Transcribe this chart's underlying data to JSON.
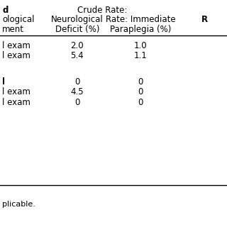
{
  "header_row1": [
    "d",
    "Crude Rate:",
    "",
    ""
  ],
  "header_row2": [
    "ological",
    "Neurological",
    "Rate: Immediate",
    "R"
  ],
  "header_row3": [
    "ment",
    "Deficit (%)",
    "Paraplegia (%)",
    ""
  ],
  "data_rows": [
    [
      "l exam",
      "2.0",
      "1.0",
      ""
    ],
    [
      "l exam",
      "5.4",
      "1.1",
      ""
    ],
    [
      "",
      "",
      "",
      ""
    ],
    [
      "l",
      "0",
      "0",
      ""
    ],
    [
      "l exam",
      "4.5",
      "0",
      ""
    ],
    [
      "l exam",
      "0",
      "0",
      ""
    ]
  ],
  "footer": "plicable.",
  "bg_color": "#ffffff",
  "text_color": "#000000",
  "line_color": "#000000",
  "font_size": 8.5,
  "header_font_size": 8.5
}
